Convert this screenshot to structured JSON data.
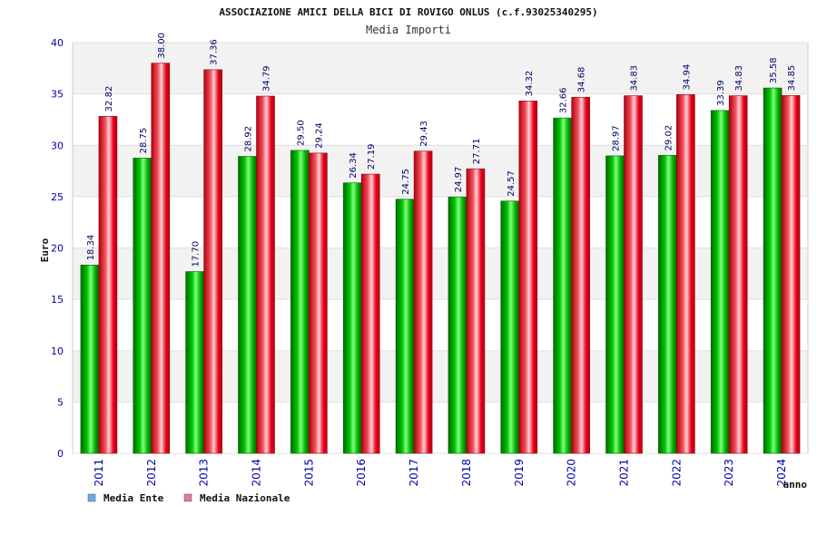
{
  "chart_data": {
    "type": "bar",
    "title": "ASSOCIAZIONE AMICI DELLA BICI DI ROVIGO ONLUS (c.f.93025340295)",
    "subtitle": "Media Importi",
    "xlabel": "anno",
    "ylabel": "Euro",
    "ylim": [
      0,
      40
    ],
    "yticks": [
      "0",
      "5",
      "10",
      "15",
      "20",
      "25",
      "30",
      "35",
      "40"
    ],
    "categories": [
      "2011",
      "2012",
      "2013",
      "2014",
      "2015",
      "2016",
      "2017",
      "2018",
      "2019",
      "2020",
      "2021",
      "2022",
      "2023",
      "2024"
    ],
    "series": [
      {
        "name": "Media Ente",
        "color": "#00b000",
        "values": [
          18.34,
          28.75,
          17.7,
          28.92,
          29.5,
          26.34,
          24.75,
          24.97,
          24.57,
          32.66,
          28.97,
          29.02,
          33.39,
          35.58
        ],
        "labels": [
          "18.34",
          "28.75",
          "17.70",
          "28.92",
          "29.50",
          "26.34",
          "24.75",
          "24.97",
          "24.57",
          "32.66",
          "28.97",
          "29.02",
          "33.39",
          "35.58"
        ]
      },
      {
        "name": "Media Nazionale",
        "color": "#e8001a",
        "values": [
          32.82,
          38.0,
          37.36,
          34.79,
          29.24,
          27.19,
          29.43,
          27.71,
          34.32,
          34.68,
          34.83,
          34.94,
          34.83,
          34.85
        ],
        "labels": [
          "32.82",
          "38.00",
          "37.36",
          "34.79",
          "29.24",
          "27.19",
          "29.43",
          "27.71",
          "34.32",
          "34.68",
          "34.83",
          "34.94",
          "34.83",
          "34.85"
        ]
      }
    ],
    "legend": [
      {
        "label": "Media Ente",
        "color": "#6fa8e8"
      },
      {
        "label": "Media Nazionale",
        "color": "#e07aa8"
      }
    ],
    "legend_position": "bottom-left",
    "grid": true,
    "band_colors": [
      "#f2f2f2",
      "#ffffff"
    ]
  }
}
